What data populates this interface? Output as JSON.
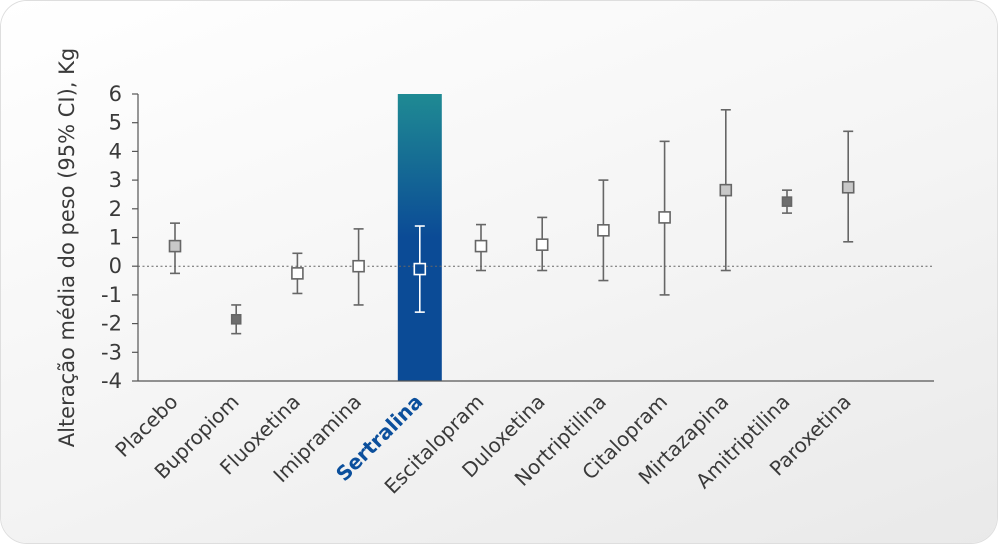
{
  "chart_data": {
    "type": "scatter",
    "subtype": "point-with-error-bars",
    "ylabel": "Alteração média do peso (95% CI), Kg",
    "xlabel": "",
    "ylim": [
      -4,
      6
    ],
    "yticks": [
      6,
      5,
      4,
      3,
      2,
      1,
      0,
      -1,
      -2,
      -3,
      -4
    ],
    "reference_line": {
      "y": 0,
      "style": "dotted"
    },
    "highlight_category": "Sertralina",
    "categories": [
      "Placebo",
      "Bupropiom",
      "Fluoxetina",
      "Imipramina",
      "Sertralina",
      "Escitalopram",
      "Duloxetina",
      "Nortriptilina",
      "Citalopram",
      "Mirtazapina",
      "Amitriptilina",
      "Paroxetina"
    ],
    "series": [
      {
        "values": [
          0.7,
          -1.85,
          -0.25,
          0.0,
          -0.1,
          0.7,
          0.75,
          1.25,
          1.7,
          2.65,
          2.25,
          2.75
        ],
        "lower": [
          -0.25,
          -2.35,
          -0.95,
          -1.35,
          -1.6,
          -0.15,
          -0.15,
          -0.5,
          -1.0,
          -0.15,
          1.85,
          0.85
        ],
        "upper": [
          1.5,
          -1.35,
          0.45,
          1.3,
          1.4,
          1.45,
          1.7,
          3.0,
          4.35,
          5.45,
          2.65,
          4.7
        ],
        "marker_style": [
          "filled-light",
          "filled-dark",
          "open",
          "open",
          "open",
          "open",
          "open",
          "open",
          "open",
          "filled-light",
          "filled-dark",
          "filled-light"
        ]
      }
    ],
    "colors": {
      "highlight_top": "#1f8a93",
      "highlight_bottom": "#0b4b96",
      "errorbar": "#666666",
      "marker_edge": "#666666",
      "marker_light": "#c8c8c8",
      "marker_dark": "#6e6e6e",
      "highlight_label": "#0b4f9c"
    }
  }
}
